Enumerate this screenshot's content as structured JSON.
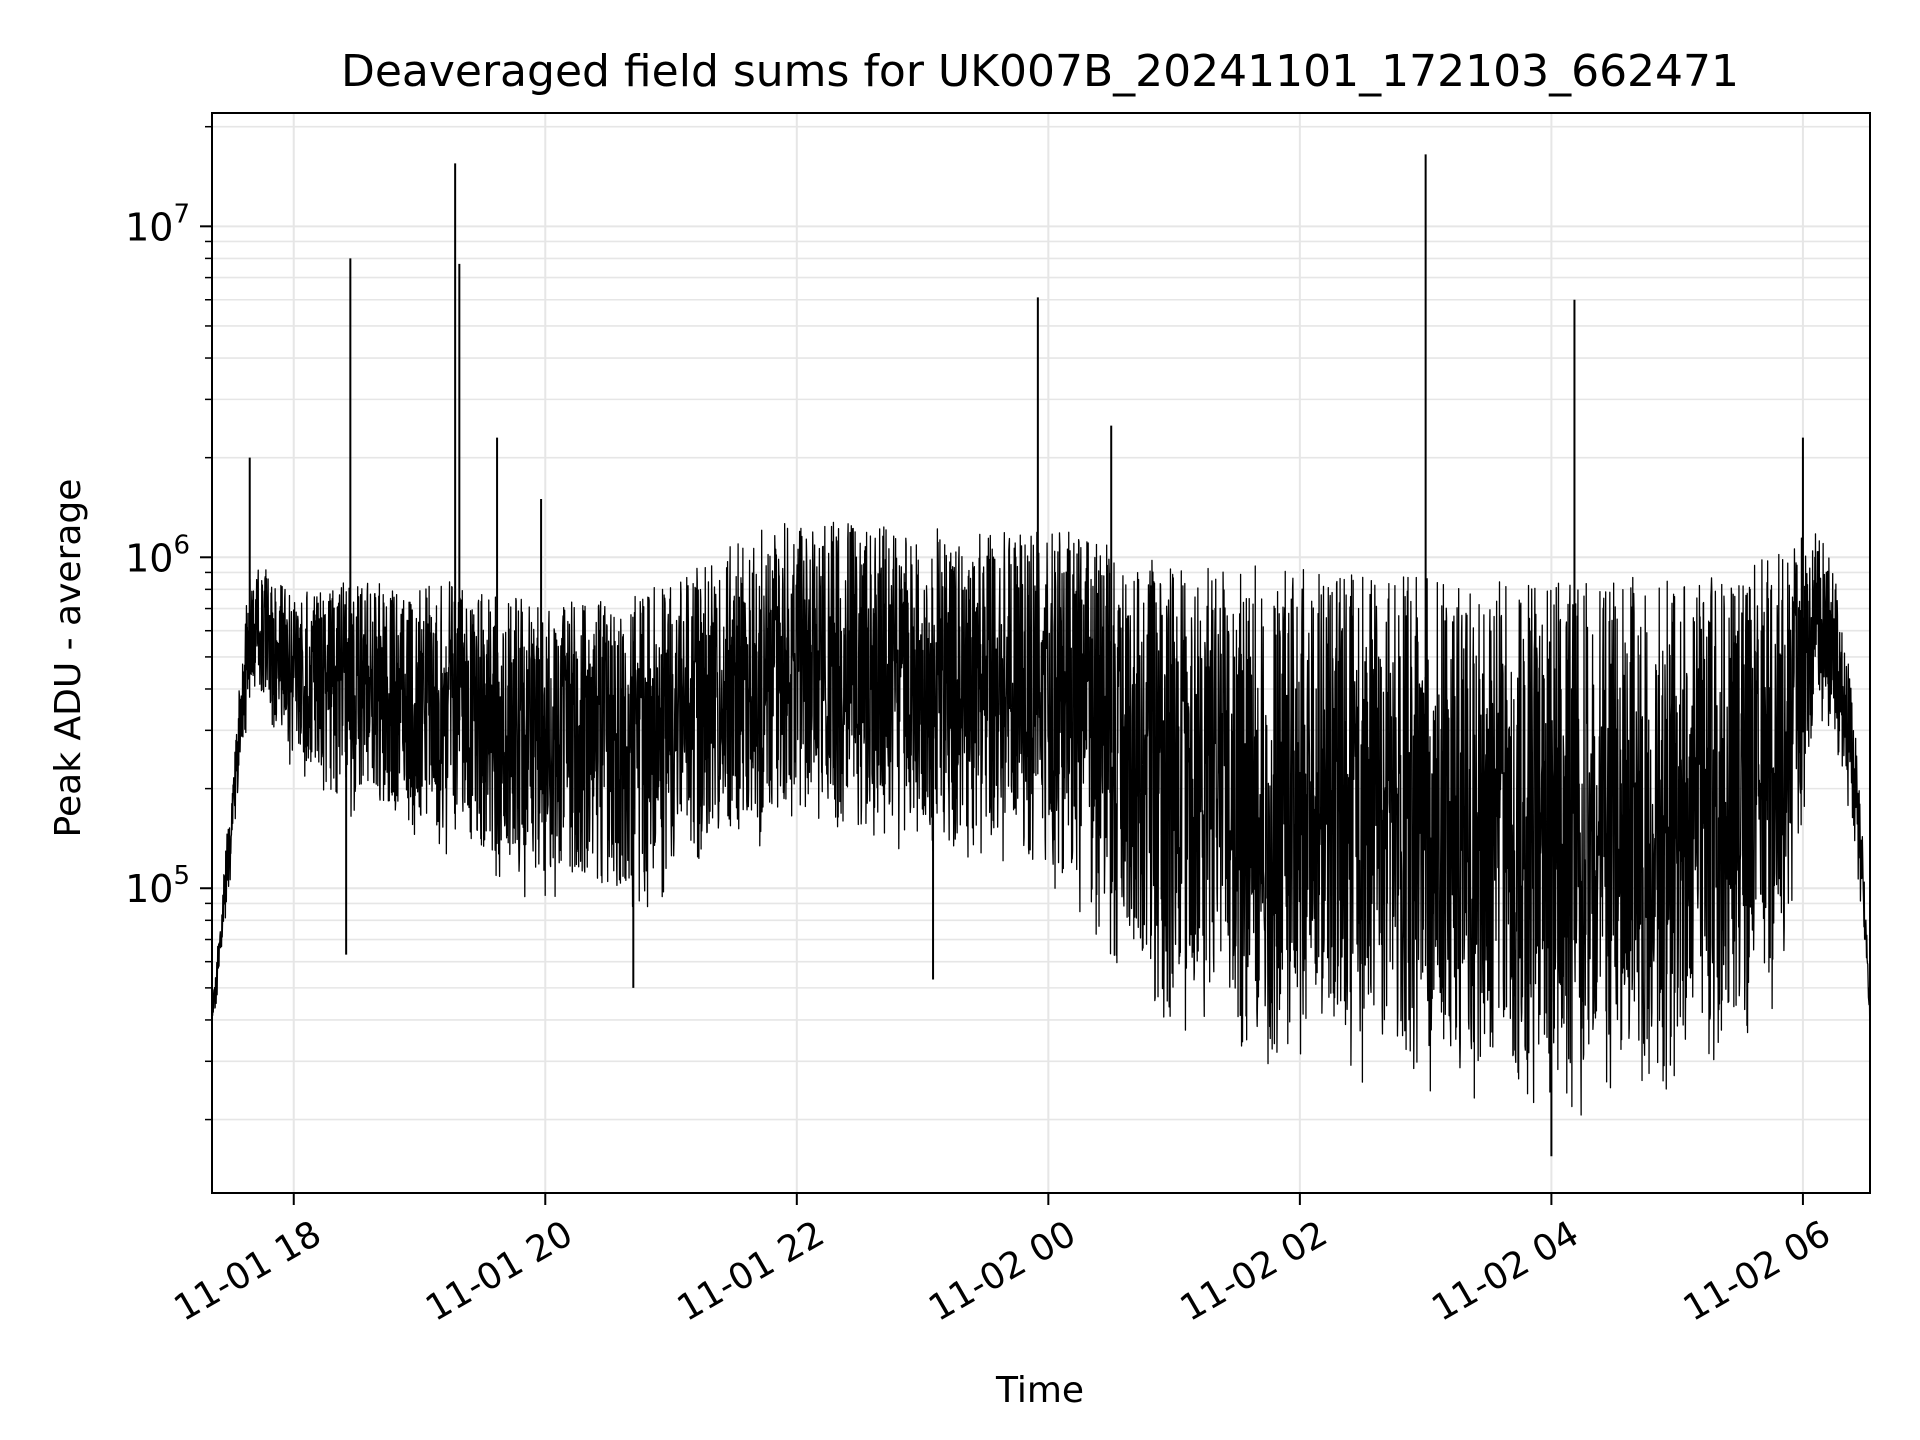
{
  "chart_data": {
    "type": "line",
    "title": "Deaveraged field sums for UK007B_20241101_172103_662471",
    "xlabel": "Time",
    "ylabel": "Peak ADU - average",
    "yscale": "log",
    "ylim": [
      12000,
      22000000
    ],
    "xlim": [
      "2024-11-01 17:21",
      "2024-11-02 06:32"
    ],
    "grid": true,
    "line_color": "#000000",
    "x_ticks": [
      {
        "value": "2024-11-01 18:00",
        "label": "11-01 18"
      },
      {
        "value": "2024-11-01 20:00",
        "label": "11-01 20"
      },
      {
        "value": "2024-11-01 22:00",
        "label": "11-01 22"
      },
      {
        "value": "2024-11-02 00:00",
        "label": "11-02 00"
      },
      {
        "value": "2024-11-02 02:00",
        "label": "11-02 02"
      },
      {
        "value": "2024-11-02 04:00",
        "label": "11-02 04"
      },
      {
        "value": "2024-11-02 06:00",
        "label": "11-02 06"
      }
    ],
    "y_ticks": [
      {
        "value": 100000,
        "base": "10",
        "exp": "5"
      },
      {
        "value": 1000000,
        "base": "10",
        "exp": "6"
      },
      {
        "value": 10000000,
        "base": "10",
        "exp": "7"
      }
    ],
    "series": [
      {
        "x": [
          "2024-11-01 17:21",
          "2024-11-01 17:24",
          "2024-11-01 17:27",
          "2024-11-01 17:30",
          "2024-11-01 17:33",
          "2024-11-01 17:36",
          "2024-11-01 17:39",
          "2024-11-01 17:42",
          "2024-11-01 17:45",
          "2024-11-01 17:48",
          "2024-11-01 17:51",
          "2024-11-01 17:54",
          "2024-11-01 17:57",
          "2024-11-01 18:00",
          "2024-11-01 18:06",
          "2024-11-01 18:12",
          "2024-11-01 18:18",
          "2024-11-01 18:24",
          "2024-11-01 18:27",
          "2024-11-01 18:30",
          "2024-11-01 18:36",
          "2024-11-01 18:42",
          "2024-11-01 18:48",
          "2024-11-01 18:54",
          "2024-11-01 19:00",
          "2024-11-01 19:06",
          "2024-11-01 19:12",
          "2024-11-01 19:16",
          "2024-11-01 19:17",
          "2024-11-01 19:18",
          "2024-11-01 19:24",
          "2024-11-01 19:30",
          "2024-11-01 19:36",
          "2024-11-01 19:42",
          "2024-11-01 19:48",
          "2024-11-01 19:54",
          "2024-11-01 20:00",
          "2024-11-01 20:10",
          "2024-11-01 20:20",
          "2024-11-01 20:30",
          "2024-11-01 20:40",
          "2024-11-01 20:50",
          "2024-11-01 21:00",
          "2024-11-01 21:10",
          "2024-11-01 21:20",
          "2024-11-01 21:30",
          "2024-11-01 21:40",
          "2024-11-01 21:50",
          "2024-11-01 22:00",
          "2024-11-01 22:10",
          "2024-11-01 22:20",
          "2024-11-01 22:30",
          "2024-11-01 22:40",
          "2024-11-01 22:50",
          "2024-11-01 23:00",
          "2024-11-01 23:10",
          "2024-11-01 23:20",
          "2024-11-01 23:30",
          "2024-11-01 23:40",
          "2024-11-01 23:50",
          "2024-11-01 23:55",
          "2024-11-02 00:00",
          "2024-11-02 00:10",
          "2024-11-02 00:20",
          "2024-11-02 00:30",
          "2024-11-02 00:40",
          "2024-11-02 00:50",
          "2024-11-02 01:00",
          "2024-11-02 01:15",
          "2024-11-02 01:30",
          "2024-11-02 01:45",
          "2024-11-02 02:00",
          "2024-11-02 02:15",
          "2024-11-02 02:30",
          "2024-11-02 02:45",
          "2024-11-02 03:00",
          "2024-11-02 03:15",
          "2024-11-02 03:30",
          "2024-11-02 03:45",
          "2024-11-02 04:00",
          "2024-11-02 04:10",
          "2024-11-02 04:11",
          "2024-11-02 04:20",
          "2024-11-02 04:30",
          "2024-11-02 04:45",
          "2024-11-02 05:00",
          "2024-11-02 05:15",
          "2024-11-02 05:30",
          "2024-11-02 05:45",
          "2024-11-02 05:55",
          "2024-11-02 06:00",
          "2024-11-02 06:05",
          "2024-11-02 06:10",
          "2024-11-02 06:15",
          "2024-11-02 06:20",
          "2024-11-02 06:25",
          "2024-11-02 06:30",
          "2024-11-02 06:32"
        ],
        "low": [
          38000,
          45000,
          70000,
          110000,
          170000,
          250000,
          320000,
          380000,
          360000,
          320000,
          290000,
          260000,
          240000,
          220000,
          210000,
          200000,
          190000,
          180000,
          150000,
          170000,
          160000,
          150000,
          145000,
          140000,
          135000,
          130000,
          125000,
          120000,
          120000,
          120000,
          110000,
          105000,
          100000,
          100000,
          95000,
          90000,
          95000,
          90000,
          85000,
          80000,
          80000,
          85000,
          90000,
          100000,
          110000,
          120000,
          130000,
          140000,
          150000,
          150000,
          145000,
          140000,
          135000,
          130000,
          125000,
          120000,
          120000,
          115000,
          110000,
          110000,
          110000,
          100000,
          90000,
          75000,
          60000,
          50000,
          40000,
          35000,
          30000,
          28000,
          27000,
          27000,
          26000,
          25000,
          25000,
          24000,
          23000,
          22000,
          21000,
          20000,
          20000,
          20000,
          21000,
          22000,
          23000,
          25000,
          28000,
          32000,
          40000,
          60000,
          150000,
          250000,
          280000,
          260000,
          200000,
          130000,
          60000,
          38000
        ],
        "high": [
          45000,
          70000,
          120000,
          200000,
          350000,
          600000,
          900000,
          1000000,
          950000,
          900000,
          880000,
          850000,
          820000,
          800000,
          820000,
          830000,
          850000,
          860000,
          900000,
          880000,
          860000,
          840000,
          830000,
          820000,
          810000,
          820000,
          840000,
          880000,
          900000,
          880000,
          850000,
          820000,
          800000,
          780000,
          760000,
          750000,
          760000,
          750000,
          740000,
          740000,
          760000,
          800000,
          850000,
          920000,
          1000000,
          1100000,
          1200000,
          1250000,
          1300000,
          1300000,
          1290000,
          1280000,
          1270000,
          1250000,
          1230000,
          1220000,
          1220000,
          1220000,
          1230000,
          1240000,
          1250000,
          1250000,
          1200000,
          1150000,
          1100000,
          1050000,
          1000000,
          980000,
          960000,
          950000,
          940000,
          930000,
          920000,
          910000,
          900000,
          890000,
          880000,
          870000,
          860000,
          850000,
          850000,
          850000,
          860000,
          870000,
          880000,
          900000,
          920000,
          950000,
          1000000,
          1100000,
          1200000,
          1200000,
          1150000,
          900000,
          600000,
          300000,
          100000,
          45000
        ]
      }
    ],
    "spikes": [
      {
        "x": "2024-11-01 17:39",
        "y": 2000000
      },
      {
        "x": "2024-11-01 18:27",
        "y": 8000000
      },
      {
        "x": "2024-11-01 19:17",
        "y": 15500000
      },
      {
        "x": "2024-11-01 19:19",
        "y": 7700000
      },
      {
        "x": "2024-11-01 19:37",
        "y": 2300000
      },
      {
        "x": "2024-11-01 19:58",
        "y": 1500000
      },
      {
        "x": "2024-11-01 23:55",
        "y": 6100000
      },
      {
        "x": "2024-11-02 00:30",
        "y": 2500000
      },
      {
        "x": "2024-11-02 04:11",
        "y": 6000000
      },
      {
        "x": "2024-11-02 06:00",
        "y": 2300000
      },
      {
        "x": "2024-11-01 18:25",
        "y": 63000
      },
      {
        "x": "2024-11-01 23:05",
        "y": 53000
      },
      {
        "x": "2024-11-01 20:42",
        "y": 50000
      },
      {
        "x": "2024-11-02 03:00",
        "y": 16500000
      },
      {
        "x": "2024-11-02 04:00",
        "y": 15500
      }
    ]
  }
}
